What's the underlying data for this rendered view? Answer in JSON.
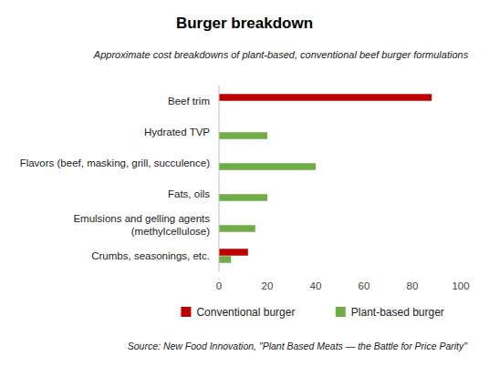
{
  "chart_data": {
    "type": "bar",
    "orientation": "horizontal",
    "title": "Burger breakdown",
    "subtitle": "Approximate cost breakdowns of plant-based, conventional beef burger formulations",
    "source": "Source: New Food Innovation, \"Plant Based Meats — the Battle for Price Parity\"",
    "categories": [
      "Beef trim",
      "Hydrated TVP",
      "Flavors (beef, masking, grill, succulence)",
      "Fats, oils",
      "Emulsions and gelling agents (methylcellulose)",
      "Crumbs, seasonings, etc."
    ],
    "series": [
      {
        "name": "Conventional burger",
        "color": "#c00000",
        "values": [
          88,
          null,
          null,
          null,
          null,
          12
        ]
      },
      {
        "name": "Plant-based burger",
        "color": "#70ad47",
        "values": [
          null,
          20,
          40,
          20,
          15,
          5
        ]
      }
    ],
    "xlim": [
      0,
      100
    ],
    "xticks": [
      0,
      20,
      40,
      60,
      80,
      100
    ],
    "grid": false,
    "legend": "bottom",
    "data_labels": false
  }
}
